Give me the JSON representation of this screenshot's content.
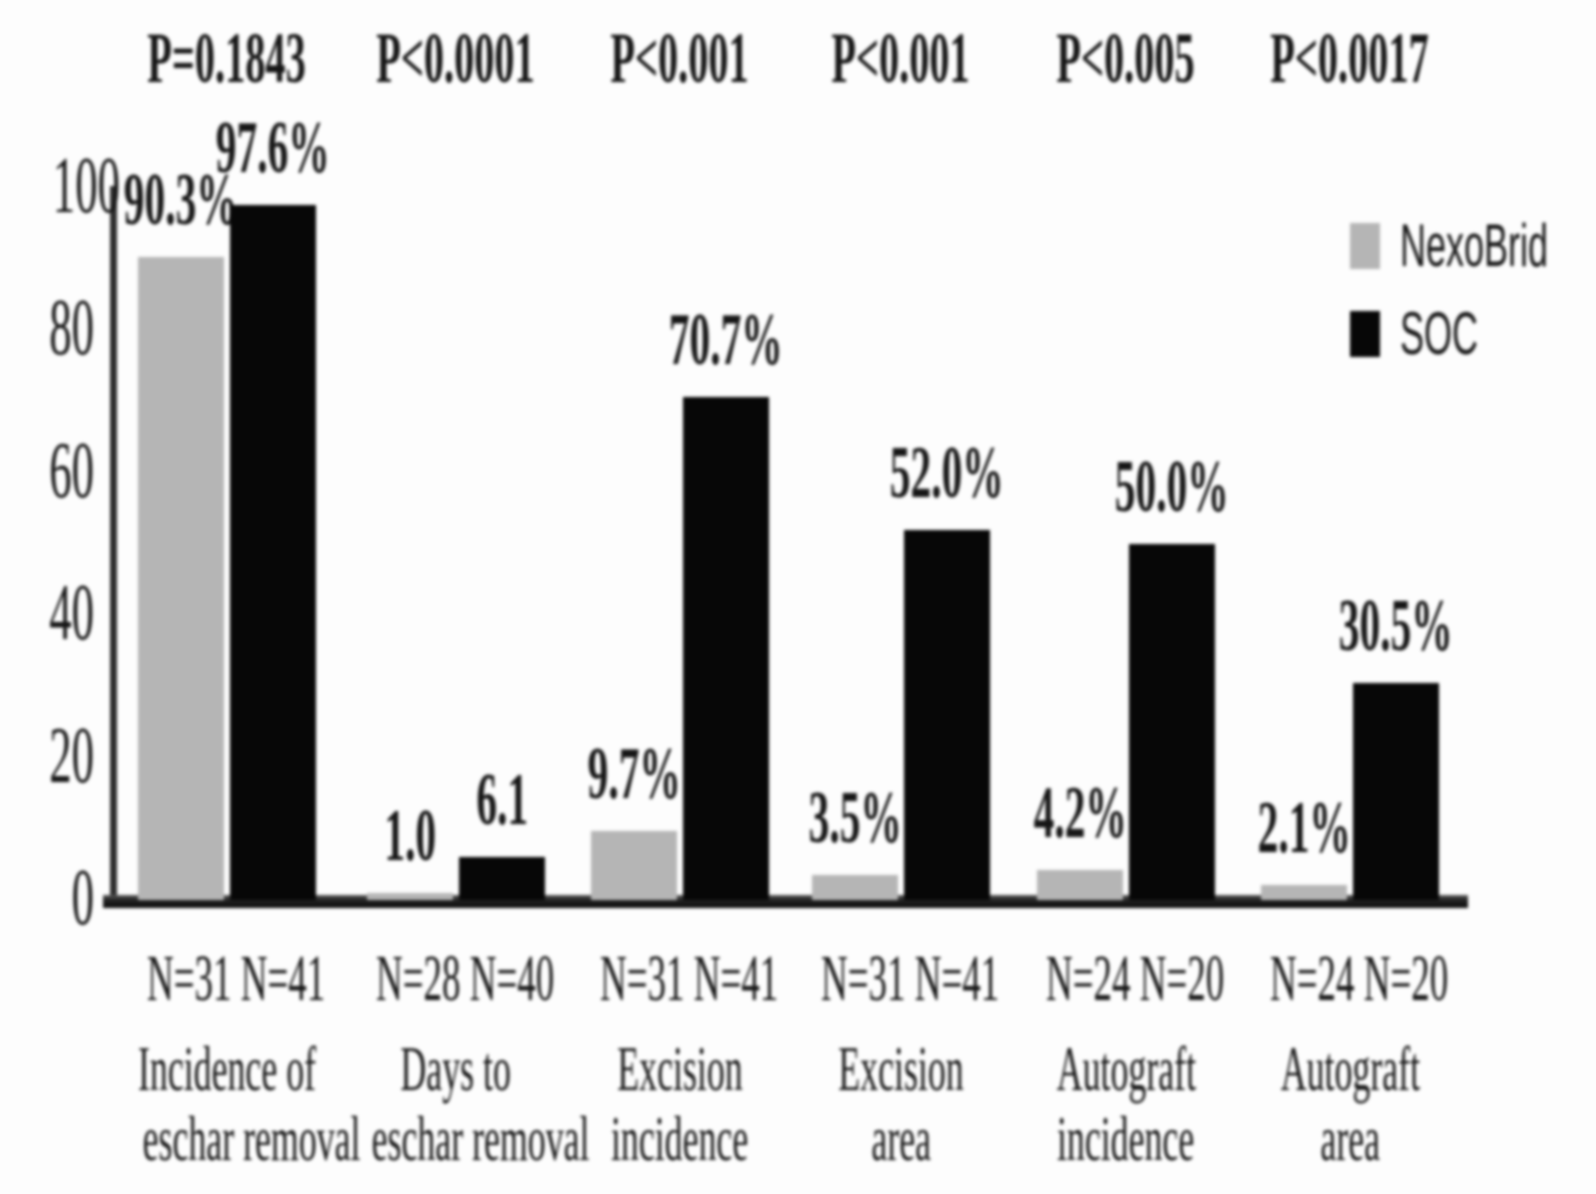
{
  "chart_data": {
    "type": "bar",
    "title": "",
    "xlabel": "",
    "ylabel": "",
    "ylim": [
      0,
      100
    ],
    "yticks": [
      0,
      20,
      40,
      60,
      80,
      100
    ],
    "grid": false,
    "legend_position": "top-right",
    "legend": [
      {
        "name": "NexoBrid",
        "color": "#b5b5b5"
      },
      {
        "name": "SOC",
        "color": "#070707"
      }
    ],
    "groups": [
      {
        "p_label": "P=0.1843",
        "n_labels": [
          "N=31",
          "N=41"
        ],
        "category": [
          "Incidence of",
          "eschar removal"
        ],
        "series": [
          {
            "name": "NexoBrid",
            "value": 90.3,
            "label": "90.3%"
          },
          {
            "name": "SOC",
            "value": 97.6,
            "label": "97.6%"
          }
        ]
      },
      {
        "p_label": "P<0.0001",
        "n_labels": [
          "N=28",
          "N=40"
        ],
        "category": [
          "Days to",
          "eschar removal"
        ],
        "series": [
          {
            "name": "NexoBrid",
            "value": 1.0,
            "label": "1.0"
          },
          {
            "name": "SOC",
            "value": 6.1,
            "label": "6.1"
          }
        ]
      },
      {
        "p_label": "P<0.001",
        "n_labels": [
          "N=31",
          "N=41"
        ],
        "category": [
          "Excision",
          "incidence"
        ],
        "series": [
          {
            "name": "NexoBrid",
            "value": 9.7,
            "label": "9.7%"
          },
          {
            "name": "SOC",
            "value": 70.7,
            "label": "70.7%"
          }
        ]
      },
      {
        "p_label": "P<0.001",
        "n_labels": [
          "N=31",
          "N=41"
        ],
        "category": [
          "Excision",
          "area"
        ],
        "series": [
          {
            "name": "NexoBrid",
            "value": 3.5,
            "label": "3.5%"
          },
          {
            "name": "SOC",
            "value": 52.0,
            "label": "52.0%"
          }
        ]
      },
      {
        "p_label": "P<0.005",
        "n_labels": [
          "N=24",
          "N=20"
        ],
        "category": [
          "Autograft",
          "incidence"
        ],
        "series": [
          {
            "name": "NexoBrid",
            "value": 4.2,
            "label": "4.2%"
          },
          {
            "name": "SOC",
            "value": 50.0,
            "label": "50.0%"
          }
        ]
      },
      {
        "p_label": "P<0.0017",
        "n_labels": [
          "N=24",
          "N=20"
        ],
        "category": [
          "Autograft",
          "area"
        ],
        "series": [
          {
            "name": "NexoBrid",
            "value": 2.1,
            "label": "2.1%"
          },
          {
            "name": "SOC",
            "value": 30.5,
            "label": "30.5%"
          }
        ]
      }
    ]
  }
}
